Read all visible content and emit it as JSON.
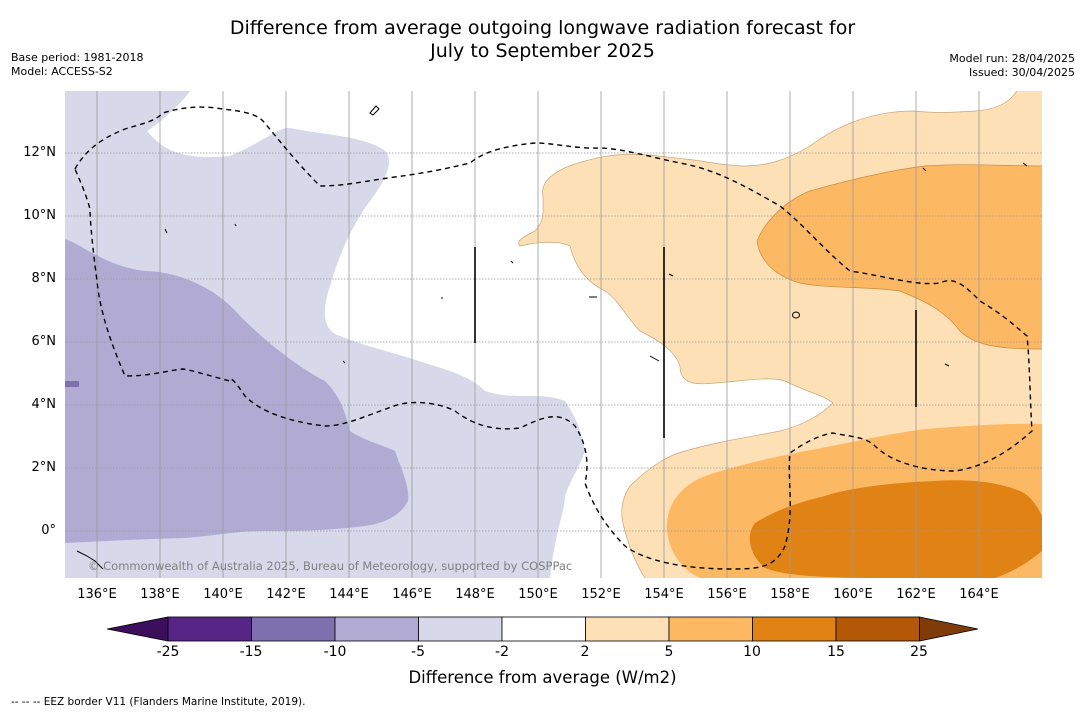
{
  "title_line1": "Difference from average outgoing longwave radiation forecast for",
  "title_line2": "July to September 2025",
  "meta_left": [
    "Base period: 1981-2018",
    "Model: ACCESS-S2"
  ],
  "meta_right": [
    "Model run: 28/04/2025",
    "Issued: 30/04/2025"
  ],
  "latitude_labels": [
    "12°N",
    "10°N",
    "8°N",
    "6°N",
    "4°N",
    "2°N",
    "0°"
  ],
  "longitude_labels": [
    "136°E",
    "138°E",
    "140°E",
    "142°E",
    "144°E",
    "146°E",
    "148°E",
    "150°E",
    "152°E",
    "154°E",
    "156°E",
    "158°E",
    "160°E",
    "162°E",
    "164°E"
  ],
  "copyright": "© Commonwealth of Australia 2025, Bureau of Meteorology, supported by COSPPac",
  "colorbar": {
    "title": "Difference from average (W/m2)",
    "ticks": [
      "-25",
      "-15",
      "-10",
      "-5",
      "-2",
      "2",
      "5",
      "10",
      "15",
      "25"
    ],
    "colors": [
      "#3d0e5c",
      "#562585",
      "#7e70ad",
      "#b1abd4",
      "#d8d8eb",
      "#ffffff",
      "#fee0b6",
      "#fdb863",
      "#e08214",
      "#b35806",
      "#7f3b08"
    ]
  },
  "footnote": "--  --  -- EEZ border V11 (Flanders Marine Institute, 2019)."
}
